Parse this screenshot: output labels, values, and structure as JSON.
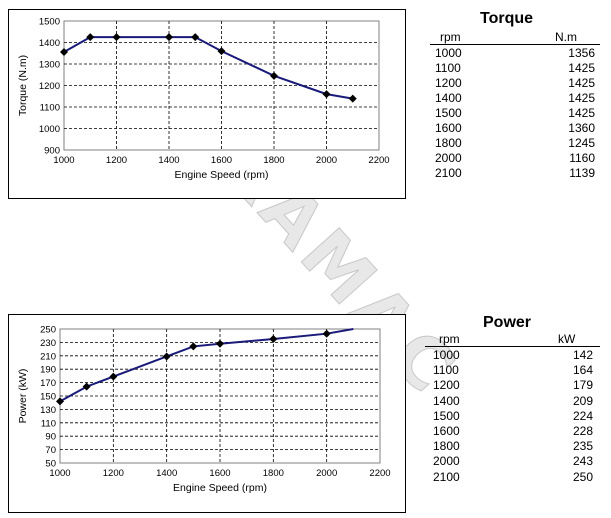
{
  "watermark": "DURAMAC",
  "chart_data": [
    {
      "type": "line",
      "xlabel": "Engine Speed (rpm)",
      "ylabel": "Torque (N.m)",
      "xlim": [
        1000,
        2200
      ],
      "ylim": [
        900,
        1500
      ],
      "xticks": [
        1000,
        1200,
        1400,
        1600,
        1800,
        2000,
        2200
      ],
      "yticks": [
        900,
        1000,
        1100,
        1200,
        1300,
        1400,
        1500
      ],
      "grid": true,
      "line_color": "#1a1a7a",
      "series": [
        {
          "x": [
            1000,
            1100,
            1200,
            1400,
            1500,
            1600,
            1800,
            2000,
            2100
          ],
          "values": [
            1356,
            1425,
            1425,
            1425,
            1425,
            1360,
            1245,
            1160,
            1139
          ]
        }
      ]
    },
    {
      "type": "line",
      "xlabel": "Engine Speed (rpm)",
      "ylabel": "Power (kW)",
      "xlim": [
        1000,
        2200
      ],
      "ylim": [
        50,
        250
      ],
      "xticks": [
        1000,
        1200,
        1400,
        1600,
        1800,
        2000,
        2200
      ],
      "yticks": [
        50,
        70,
        90,
        110,
        130,
        150,
        170,
        190,
        210,
        230,
        250
      ],
      "grid": true,
      "line_color": "#1a1a7a",
      "series": [
        {
          "x": [
            1000,
            1100,
            1200,
            1400,
            1500,
            1600,
            1800,
            2000,
            2100
          ],
          "values": [
            142,
            164,
            179,
            209,
            224,
            228,
            235,
            243,
            250
          ],
          "markers_on": [
            1000,
            1100,
            1200,
            1400,
            1500,
            1600,
            1800,
            2000
          ]
        }
      ]
    }
  ],
  "tables": {
    "torque": {
      "title": "Torque",
      "col_x": "rpm",
      "col_y": "N.m",
      "rows": [
        [
          "1000",
          "1356"
        ],
        [
          "1100",
          "1425"
        ],
        [
          "1200",
          "1425"
        ],
        [
          "1400",
          "1425"
        ],
        [
          "1500",
          "1425"
        ],
        [
          "1600",
          "1360"
        ],
        [
          "1800",
          "1245"
        ],
        [
          "2000",
          "1160"
        ],
        [
          "2100",
          "1139"
        ]
      ]
    },
    "power": {
      "title": "Power",
      "col_x": "rpm",
      "col_y": "kW",
      "rows": [
        [
          "1000",
          "142"
        ],
        [
          "1100",
          "164"
        ],
        [
          "1200",
          "179"
        ],
        [
          "1400",
          "209"
        ],
        [
          "1500",
          "224"
        ],
        [
          "1600",
          "228"
        ],
        [
          "1800",
          "235"
        ],
        [
          "2000",
          "243"
        ],
        [
          "2100",
          "250"
        ]
      ]
    }
  }
}
